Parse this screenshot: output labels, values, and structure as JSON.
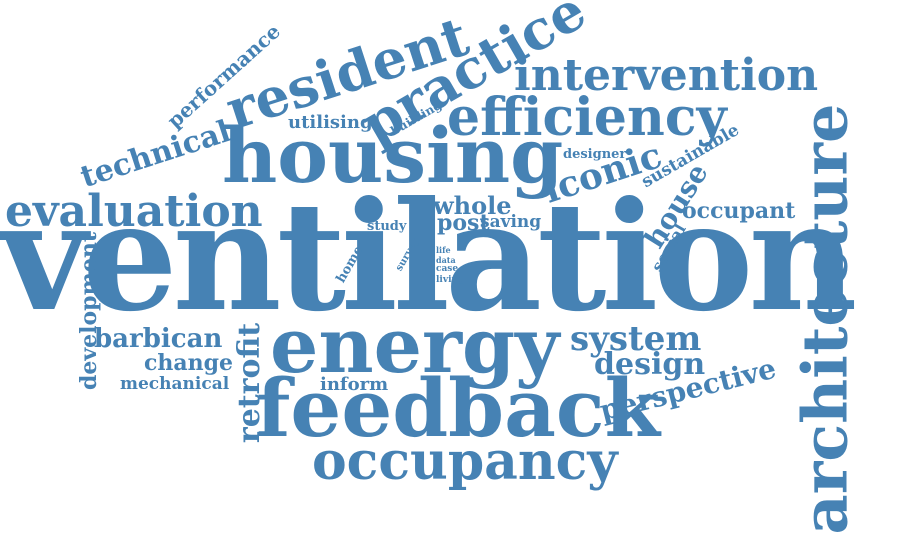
{
  "color": "#4682b4",
  "words": [
    "ventilation",
    "housing",
    "energy",
    "feedback",
    "architecture",
    "occupancy",
    "evaluation",
    "resident",
    "practice",
    "intervention",
    "efficiency",
    "iconic",
    "technical",
    "performance",
    "utilising",
    "building",
    "designer",
    "sustainable",
    "house",
    "occupant",
    "whole",
    "post",
    "saving",
    "social",
    "study",
    "survey",
    "home",
    "life",
    "data",
    "case",
    "living",
    "development",
    "barbican",
    "change",
    "mechanical",
    "retrofit",
    "inform",
    "system",
    "design",
    "perspective"
  ]
}
